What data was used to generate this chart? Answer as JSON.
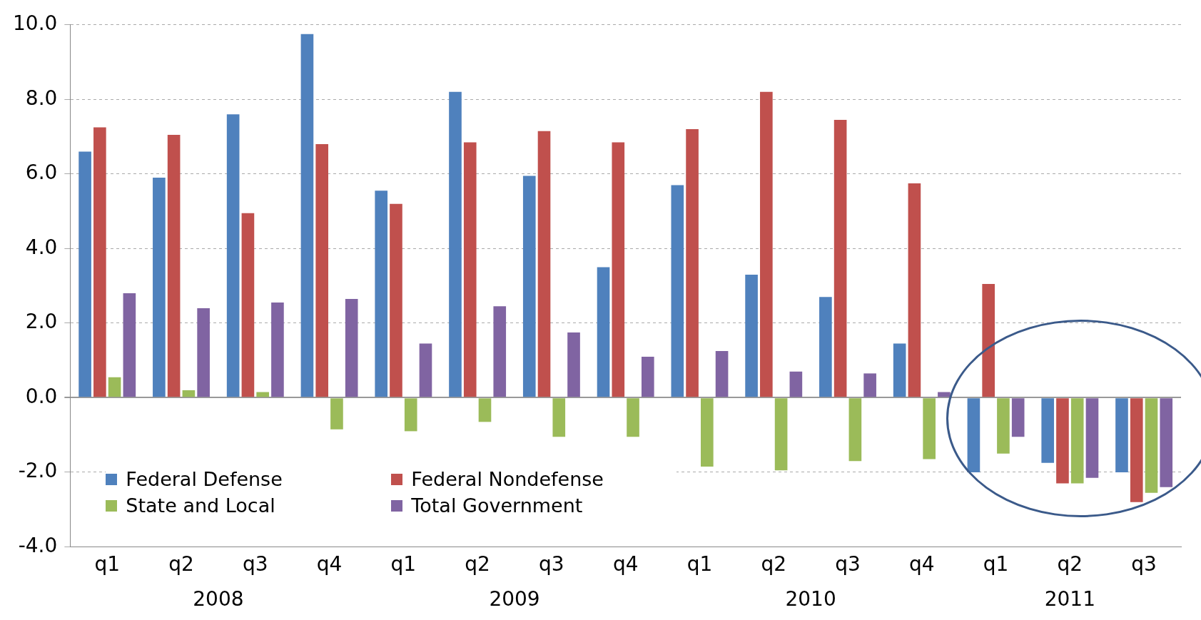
{
  "chart_data": {
    "type": "bar",
    "categories": [
      "q1",
      "q2",
      "q3",
      "q4",
      "q1",
      "q2",
      "q3",
      "q4",
      "q1",
      "q2",
      "q3",
      "q4",
      "q1",
      "q2",
      "q3"
    ],
    "series": [
      {
        "name": "Federal Defense",
        "color": "#4f81bd",
        "values": [
          6.6,
          5.9,
          7.6,
          9.75,
          5.55,
          8.2,
          5.95,
          3.5,
          5.7,
          3.3,
          2.7,
          1.45,
          -2.0,
          -1.75,
          -2.0
        ]
      },
      {
        "name": "Federal Nondefense",
        "color": "#c0504d",
        "values": [
          7.25,
          7.05,
          4.95,
          6.8,
          5.2,
          6.85,
          7.15,
          6.85,
          7.2,
          8.2,
          7.45,
          5.75,
          3.05,
          -2.3,
          -2.8
        ]
      },
      {
        "name": "State and Local",
        "color": "#9bbb59",
        "values": [
          0.55,
          0.2,
          0.15,
          -0.85,
          -0.9,
          -0.65,
          -1.05,
          -1.05,
          -1.85,
          -1.95,
          -1.7,
          -1.65,
          -1.5,
          -2.3,
          -2.55
        ]
      },
      {
        "name": "Total Government",
        "color": "#8064a2",
        "values": [
          2.8,
          2.4,
          2.55,
          2.65,
          1.45,
          2.45,
          1.75,
          1.1,
          1.25,
          0.7,
          0.65,
          0.15,
          -1.05,
          -2.15,
          -2.4
        ]
      }
    ],
    "ylim": [
      -4,
      10
    ],
    "yticks": [
      {
        "value": -4,
        "label": "-4.0"
      },
      {
        "value": -2,
        "label": "-2.0"
      },
      {
        "value": 0,
        "label": "0.0"
      },
      {
        "value": 2,
        "label": "2.0"
      },
      {
        "value": 4,
        "label": "4.0"
      },
      {
        "value": 6,
        "label": "6.0"
      },
      {
        "value": 8,
        "label": "8.0"
      },
      {
        "value": 10,
        "label": "10.0"
      }
    ],
    "grid": "y",
    "legend": "bottom left",
    "annotations": [
      "2008",
      "2009",
      "2010",
      "2011"
    ]
  }
}
